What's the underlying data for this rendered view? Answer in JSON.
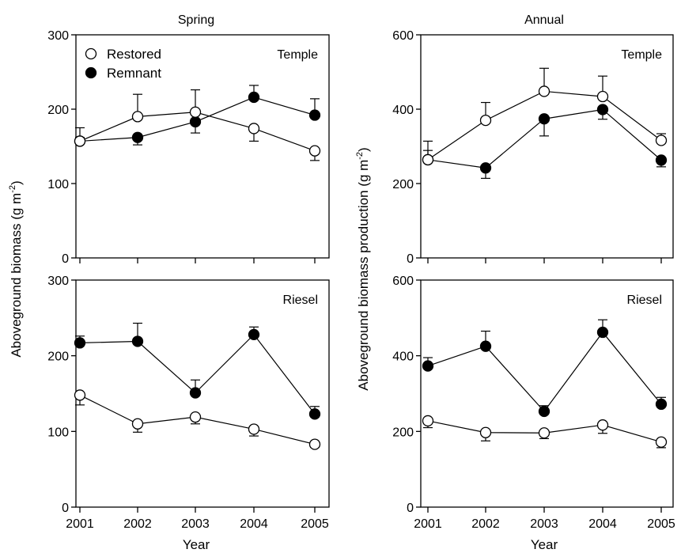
{
  "figure": {
    "ylabel_left": "Aboveground biomass (g m-2)",
    "ylabel_left_main": "Aboveground biomass (g m",
    "ylabel_left_sup": "-2",
    "ylabel_left_end": ")",
    "ylabel_right": "Aboveground biomass production (g m-2)",
    "ylabel_right_main": "Aboveground biomass production (g m",
    "ylabel_right_sup": "-2",
    "ylabel_right_end": ")",
    "xlabel": "Year",
    "column_titles": [
      "Spring",
      "Annual"
    ],
    "legend": [
      {
        "label": "Restored",
        "marker": "open-circle"
      },
      {
        "label": "Remnant",
        "marker": "filled-circle"
      }
    ],
    "legend_placement": "top-left of Spring/Temple panel"
  },
  "chart_data": [
    {
      "type": "line",
      "title": "Spring",
      "site": "Temple",
      "x": [
        2001,
        2002,
        2003,
        2004,
        2005
      ],
      "ylim": [
        0,
        300
      ],
      "yticks": [
        0,
        100,
        200,
        300
      ],
      "series": [
        {
          "name": "Restored",
          "marker": "open",
          "values": [
            157,
            190,
            196,
            174,
            144
          ],
          "error": [
            18,
            30,
            30,
            17,
            13
          ]
        },
        {
          "name": "Remnant",
          "marker": "filled",
          "values": [
            157,
            162,
            183,
            216,
            192
          ],
          "error": [
            5,
            10,
            15,
            16,
            22
          ]
        }
      ]
    },
    {
      "type": "line",
      "title": "Annual",
      "site": "Temple",
      "x": [
        2001,
        2002,
        2003,
        2004,
        2005
      ],
      "ylim": [
        0,
        600
      ],
      "yticks": [
        0,
        200,
        400,
        600
      ],
      "series": [
        {
          "name": "Restored",
          "marker": "open",
          "values": [
            264,
            370,
            448,
            434,
            316
          ],
          "error": [
            50,
            48,
            62,
            55,
            18
          ]
        },
        {
          "name": "Remnant",
          "marker": "filled",
          "values": [
            264,
            242,
            374,
            399,
            263
          ],
          "error": [
            25,
            28,
            46,
            26,
            18
          ]
        }
      ]
    },
    {
      "type": "line",
      "title": "",
      "site": "Riesel",
      "x": [
        2001,
        2002,
        2003,
        2004,
        2005
      ],
      "ylim": [
        0,
        300
      ],
      "yticks": [
        0,
        100,
        200,
        300
      ],
      "series": [
        {
          "name": "Restored",
          "marker": "open",
          "values": [
            148,
            110,
            119,
            103,
            83
          ],
          "error": [
            13,
            11,
            9,
            9,
            4
          ]
        },
        {
          "name": "Remnant",
          "marker": "filled",
          "values": [
            217,
            219,
            151,
            228,
            123
          ],
          "error": [
            9,
            24,
            17,
            10,
            10
          ]
        }
      ]
    },
    {
      "type": "line",
      "title": "",
      "site": "Riesel",
      "x": [
        2001,
        2002,
        2003,
        2004,
        2005
      ],
      "ylim": [
        0,
        600
      ],
      "yticks": [
        0,
        200,
        400,
        600
      ],
      "series": [
        {
          "name": "Restored",
          "marker": "open",
          "values": [
            228,
            197,
            196,
            217,
            172
          ],
          "error": [
            18,
            22,
            15,
            22,
            15
          ]
        },
        {
          "name": "Remnant",
          "marker": "filled",
          "values": [
            373,
            425,
            253,
            462,
            272
          ],
          "error": [
            22,
            40,
            15,
            33,
            18
          ]
        }
      ]
    }
  ]
}
